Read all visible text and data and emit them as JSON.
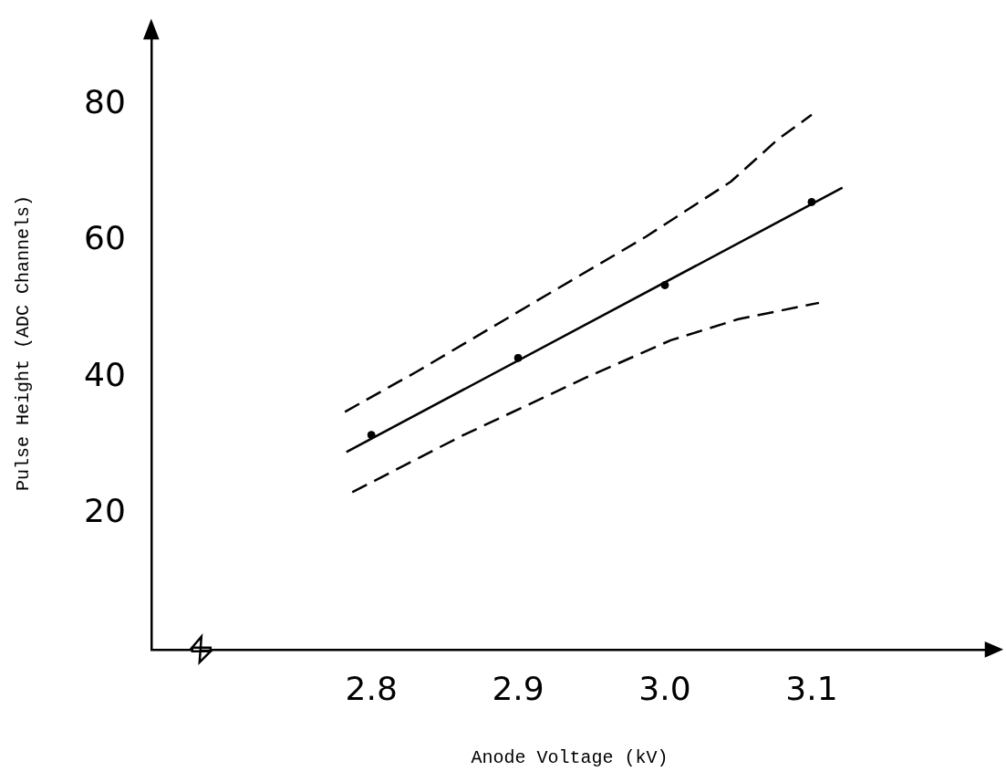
{
  "chart_data": {
    "type": "line",
    "xlabel": "Anode Voltage (kV)",
    "ylabel": "Pulse Height (ADC Channels)",
    "xlim": [
      2.65,
      3.22
    ],
    "ylim": [
      0,
      90
    ],
    "xticks": [
      {
        "value": 2.8,
        "label": "2.8"
      },
      {
        "value": 2.9,
        "label": "2.9"
      },
      {
        "value": 3.0,
        "label": "3.0"
      },
      {
        "value": 3.1,
        "label": "3.1"
      }
    ],
    "yticks": [
      20,
      40,
      60,
      80
    ],
    "grid": false,
    "legend": false,
    "series": [
      {
        "type": "scatter",
        "color": "#000000",
        "marker": "circle",
        "x": [
          2.8,
          2.9,
          3.0,
          3.1
        ],
        "values": [
          31.5,
          42.8,
          53.5,
          65.7
        ]
      },
      {
        "color": "#000000",
        "line_style": "solid",
        "marker": "none",
        "x": [
          2.783,
          3.121
        ],
        "values": [
          29.0,
          67.8
        ]
      },
      {
        "color": "#000000",
        "line_style": "dashed",
        "marker": "none",
        "x": [
          2.782,
          2.831,
          2.923,
          2.987,
          3.045,
          3.077,
          3.1
        ],
        "values": [
          34.9,
          40.8,
          52.5,
          60.6,
          68.7,
          74.9,
          78.5
        ]
      },
      {
        "color": "#000000",
        "line_style": "dashed",
        "marker": "none",
        "x": [
          2.787,
          2.861,
          2.946,
          3.004,
          3.05,
          3.105
        ],
        "values": [
          23.1,
          31.3,
          39.9,
          45.4,
          48.5,
          50.9
        ]
      }
    ]
  }
}
